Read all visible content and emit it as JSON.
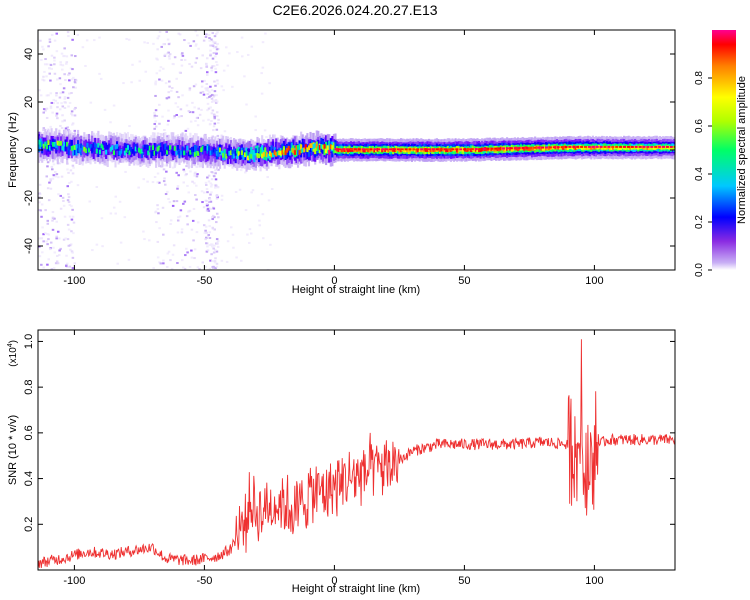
{
  "title": "C2E6.2026.024.20.27.E13",
  "chart_data": [
    {
      "type": "heatmap",
      "title": "",
      "xlabel": "Height of straight line (km)",
      "ylabel": "Frequency (Hz)",
      "xlim": [
        -114,
        131
      ],
      "ylim": [
        -50,
        50
      ],
      "xticks": [
        -100,
        -50,
        0,
        50,
        100
      ],
      "xtick_labels": [
        "-100",
        "-50",
        "0",
        "50",
        "100"
      ],
      "yticks": [
        -40,
        -20,
        0,
        20,
        40
      ],
      "ytick_labels": [
        "-40",
        "-20",
        "0",
        "20",
        "40"
      ],
      "colorbar": {
        "label": "Normalized spectral amplitude",
        "range": [
          0,
          1
        ],
        "ticks": [
          0.0,
          0.2,
          0.4,
          0.6,
          0.8
        ],
        "tick_labels": [
          "0.0",
          "0.2",
          "0.4",
          "0.6",
          "0.8"
        ],
        "colormap": [
          "#ffffff",
          "#b08cf0",
          "#6600ff",
          "#0000ff",
          "#00d8ff",
          "#00ff60",
          "#c0ff00",
          "#ffff00",
          "#ff8000",
          "#ff0000",
          "#ff0080"
        ]
      },
      "ridge": {
        "x": [
          -114,
          -100,
          -80,
          -60,
          -45,
          -35,
          -25,
          -15,
          -5,
          0,
          50,
          90,
          100,
          131
        ],
        "freq": [
          2,
          1,
          0,
          0,
          -1,
          -2,
          -1,
          0,
          1,
          0,
          0,
          1,
          1,
          1
        ],
        "peak_amplitude": [
          0.55,
          0.5,
          0.45,
          0.45,
          0.5,
          0.6,
          0.7,
          0.75,
          0.8,
          0.95,
          0.95,
          0.9,
          0.85,
          0.8
        ]
      },
      "noise_bands_km": [
        [
          -114,
          -100
        ],
        [
          -70,
          -50
        ],
        [
          -50,
          -45
        ]
      ],
      "grid": false
    },
    {
      "type": "line",
      "title": "",
      "xlabel": "Height of straight line (km)",
      "ylabel": "SNR (10 * v/v)",
      "yscale_label": "(x10",
      "yscale_exponent": "4",
      "xlim": [
        -114,
        131
      ],
      "ylim": [
        0,
        1.05
      ],
      "xticks": [
        -100,
        -50,
        0,
        50,
        100
      ],
      "xtick_labels": [
        "-100",
        "-50",
        "0",
        "50",
        "100"
      ],
      "yticks": [
        0.2,
        0.4,
        0.6,
        0.8,
        1.0
      ],
      "ytick_labels": [
        "0.2",
        "0.4",
        "0.6",
        "0.8",
        "1.0"
      ],
      "series": [
        {
          "color": "#ee3030",
          "x": [
            -114,
            -105,
            -95,
            -85,
            -75,
            -70,
            -65,
            -55,
            -45,
            -40,
            -35,
            -32,
            -30,
            -25,
            -20,
            -15,
            -10,
            -5,
            0,
            5,
            10,
            15,
            20,
            25,
            30,
            40,
            50,
            60,
            70,
            80,
            90,
            93,
            95,
            97,
            99,
            100,
            102,
            105,
            115,
            131
          ],
          "y": [
            0.03,
            0.05,
            0.08,
            0.07,
            0.09,
            0.1,
            0.05,
            0.04,
            0.06,
            0.09,
            0.2,
            0.3,
            0.25,
            0.28,
            0.3,
            0.25,
            0.33,
            0.35,
            0.36,
            0.4,
            0.42,
            0.44,
            0.45,
            0.48,
            0.52,
            0.55,
            0.55,
            0.55,
            0.55,
            0.56,
            0.55,
            0.5,
            0.6,
            0.5,
            0.55,
            0.5,
            0.55,
            0.57,
            0.57,
            0.57
          ]
        }
      ],
      "grid": false
    }
  ]
}
